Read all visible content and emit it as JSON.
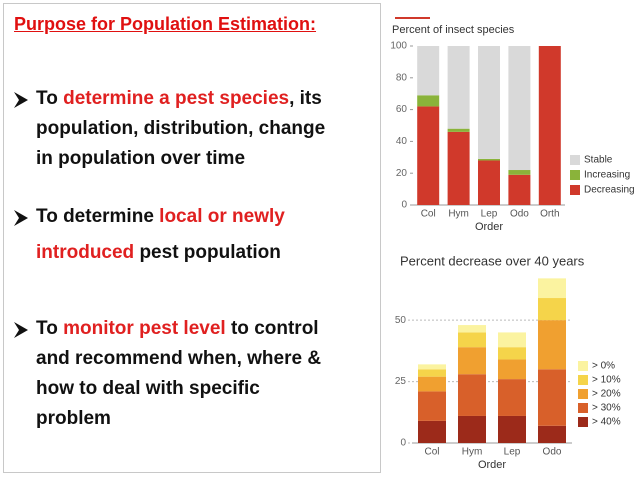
{
  "title": "Purpose for Population Estimation:",
  "bullets": [
    {
      "lines": [
        [
          {
            "text": "To "
          },
          {
            "text": "determine a pest species",
            "color": "#e02020"
          },
          {
            "text": ", its"
          }
        ],
        [
          {
            "text": "population, distribution, change"
          }
        ],
        [
          {
            "text": "in population over time"
          }
        ]
      ]
    },
    {
      "lines": [
        [
          {
            "text": "To determine "
          },
          {
            "text": "local or newly",
            "color": "#e02020"
          }
        ],
        [
          {
            "text": "introduced",
            "color": "#e02020"
          },
          {
            "text": " pest population"
          }
        ]
      ]
    },
    {
      "lines": [
        [
          {
            "text": "To "
          },
          {
            "text": "monitor pest level",
            "color": "#e02020"
          },
          {
            "text": " to control"
          }
        ],
        [
          {
            "text": "and recommend when, where &"
          }
        ],
        [
          {
            "text": "how to deal with specific"
          }
        ],
        [
          {
            "text": "problem"
          }
        ]
      ]
    }
  ],
  "chart_data": [
    {
      "type": "stacked_bar",
      "title": "Percent of insect species",
      "xlabel": "Order",
      "categories": [
        "Col",
        "Hym",
        "Lep",
        "Odo",
        "Orth"
      ],
      "series": [
        {
          "name": "Decreasing",
          "color": "#d0392b",
          "values": [
            62,
            46,
            28,
            19,
            100
          ]
        },
        {
          "name": "Increasing",
          "color": "#8ab33a",
          "values": [
            7,
            2,
            1,
            3,
            0
          ]
        },
        {
          "name": "Stable",
          "color": "#d9d9d9",
          "values": [
            31,
            52,
            71,
            78,
            0
          ]
        }
      ],
      "ylim": [
        0,
        100
      ],
      "yticks": [
        0,
        20,
        40,
        60,
        80,
        100
      ],
      "grid": false
    },
    {
      "type": "stacked_bar",
      "title": "Percent decrease over 40 years",
      "xlabel": "Order",
      "categories": [
        "Col",
        "Hym",
        "Lep",
        "Odo"
      ],
      "series": [
        {
          "name": "> 40%",
          "color": "#9c2a1a",
          "values": [
            9,
            11,
            11,
            7
          ]
        },
        {
          "name": "> 30%",
          "color": "#d8602a",
          "values": [
            12,
            17,
            15,
            23
          ]
        },
        {
          "name": "> 20%",
          "color": "#f0a030",
          "values": [
            6,
            11,
            8,
            20
          ]
        },
        {
          "name": "> 10%",
          "color": "#f5d44a",
          "values": [
            3,
            6,
            5,
            9
          ]
        },
        {
          "name": "> 0%",
          "color": "#fbf3a0",
          "values": [
            2,
            3,
            6,
            8
          ]
        }
      ],
      "ylim": [
        0,
        70
      ],
      "yticks": [
        0,
        25,
        50
      ],
      "grid": true
    }
  ]
}
